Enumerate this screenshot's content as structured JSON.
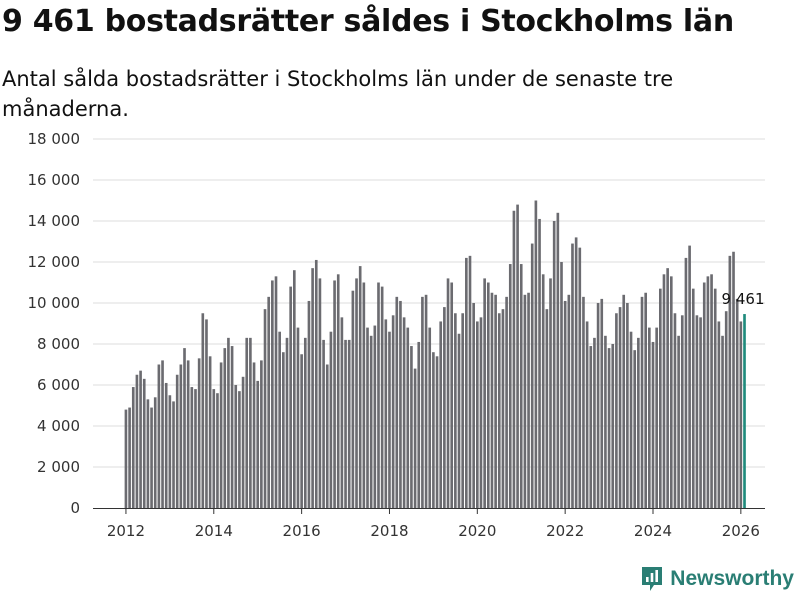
{
  "title": "9 461 bostadsrätter såldes i Stockholms län",
  "subtitle": "Antal sålda bostadsrätter i Stockholms län under de senaste tre månaderna.",
  "brand": "Newsworthy",
  "colors": {
    "bar": "#6b6b70",
    "highlight": "#1f8a7c",
    "grid": "#dddddd",
    "brand": "#2a7e74"
  },
  "chart_data": {
    "type": "bar",
    "title": "9 461 bostadsrätter såldes i Stockholms län",
    "xlabel": "",
    "ylabel": "",
    "x_start": 2012.0,
    "x_step": 0.0833333,
    "xlim": [
      2011.25,
      2026.55
    ],
    "ylim": [
      0,
      18000
    ],
    "grid": true,
    "y_ticks": [
      0,
      2000,
      4000,
      6000,
      8000,
      10000,
      12000,
      14000,
      16000,
      18000
    ],
    "y_tick_labels": [
      "0",
      "2 000",
      "4 000",
      "6 000",
      "8 000",
      "10 000",
      "12 000",
      "14 000",
      "16 000",
      "18 000"
    ],
    "x_ticks": [
      2012,
      2014,
      2016,
      2018,
      2020,
      2022,
      2024,
      2026
    ],
    "x_tick_labels": [
      "2012",
      "2014",
      "2016",
      "2018",
      "2020",
      "2022",
      "2024",
      "2026"
    ],
    "values": [
      4800,
      4900,
      5900,
      6500,
      6700,
      6300,
      5300,
      4900,
      5400,
      7000,
      7200,
      6100,
      5500,
      5200,
      6500,
      7000,
      7800,
      7200,
      5900,
      5800,
      7300,
      9500,
      9200,
      7400,
      5800,
      5600,
      7100,
      7800,
      8300,
      7900,
      6000,
      5700,
      6400,
      8300,
      8300,
      7100,
      6200,
      7200,
      9700,
      10300,
      11100,
      11300,
      8600,
      7600,
      8300,
      10800,
      11600,
      8800,
      7500,
      8300,
      10100,
      11700,
      12100,
      11200,
      8200,
      7000,
      8600,
      11100,
      11400,
      9300,
      8200,
      8200,
      10600,
      11200,
      11800,
      11000,
      8800,
      8400,
      8900,
      11000,
      10800,
      9200,
      8600,
      9400,
      10300,
      10100,
      9300,
      8800,
      7900,
      6800,
      8100,
      10300,
      10400,
      8800,
      7600,
      7400,
      9100,
      9800,
      11200,
      11000,
      9500,
      8500,
      9500,
      12200,
      12300,
      10000,
      9100,
      9300,
      11200,
      11000,
      10500,
      10400,
      9500,
      9700,
      10300,
      11900,
      14500,
      14800,
      11900,
      10400,
      10500,
      12900,
      15000,
      14100,
      11400,
      9700,
      11200,
      14000,
      14400,
      12000,
      10100,
      10400,
      12900,
      13200,
      12700,
      10300,
      9100,
      7900,
      8300,
      10000,
      10200,
      8400,
      7800,
      8000,
      9500,
      9800,
      10400,
      10000,
      8600,
      7700,
      8300,
      10300,
      10500,
      8800,
      8100,
      8800,
      10700,
      11400,
      11700,
      11300,
      9500,
      8400,
      9400,
      12200,
      12800,
      10700,
      9400,
      9300,
      11000,
      11300,
      11400,
      10700,
      9100,
      8400,
      9600,
      12300,
      12500,
      10200,
      9100,
      9461
    ],
    "highlight_index": 169,
    "highlight_label": "9 461"
  }
}
